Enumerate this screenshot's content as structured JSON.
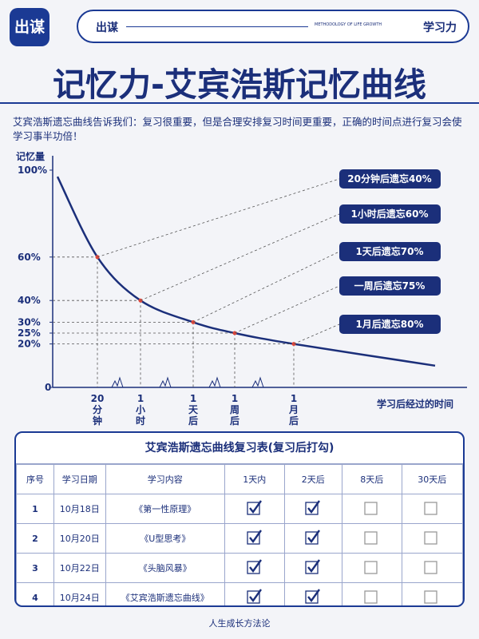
{
  "header": {
    "logo": "出谋",
    "brand": "出谋",
    "tagline": "METHODOLOGY OF LIFE GROWTH",
    "section": "学习力"
  },
  "title": "记忆力-艾宾浩斯记忆曲线",
  "intro": "艾宾浩斯遗忘曲线告诉我们：复习很重要，但是合理安排复习时间更重要，正确的时间点进行复习会使学习事半功倍！",
  "chart_data": {
    "type": "line",
    "y_label": "记忆量",
    "x_label": "学习后经过的时间",
    "categories": [
      null,
      "20分钟",
      "1小时",
      "1天后",
      "1周后",
      "1月后",
      null
    ],
    "values": [
      97,
      60,
      40,
      30,
      25,
      20,
      10
    ],
    "color": "#1b2f7a",
    "point_color": "#e0463a",
    "ylim": [
      0,
      100
    ],
    "yticks": [
      0,
      {
        "value": 20,
        "label": "20%"
      },
      {
        "value": 25,
        "label": "25%"
      },
      {
        "value": 30,
        "label": "30%"
      },
      {
        "value": 40,
        "label": "40%"
      },
      {
        "value": 60,
        "label": "60%"
      },
      {
        "value": 100,
        "label": "100%"
      }
    ],
    "annotations": [
      "20分钟后遗忘40%",
      "1小时后遗忘60%",
      "1天后遗忘70%",
      "一周后遗忘75%",
      "1月后遗忘80%"
    ]
  },
  "table": {
    "title": "艾宾浩斯遗忘曲线复习表(复习后打勾)",
    "columns": [
      "序号",
      "学习日期",
      "学习内容",
      "1天内",
      "2天后",
      "8天后",
      "30天后"
    ],
    "rows": [
      [
        "1",
        "10月18日",
        "《第一性原理》",
        true,
        true,
        false,
        false
      ],
      [
        "2",
        "10月20日",
        "《U型思考》",
        true,
        true,
        false,
        false
      ],
      [
        "3",
        "10月22日",
        "《头脑风暴》",
        true,
        true,
        false,
        false
      ],
      [
        "4",
        "10月24日",
        "《艾宾浩斯遗忘曲线》",
        true,
        true,
        false,
        false
      ]
    ]
  },
  "footer": "人生成长方法论"
}
